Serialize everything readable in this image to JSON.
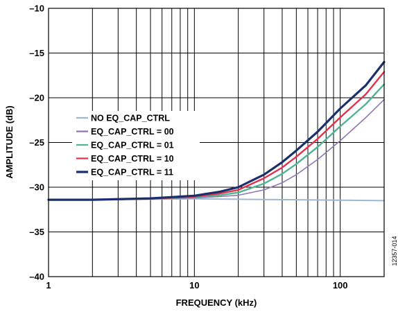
{
  "chart_data": {
    "type": "line",
    "title": "",
    "xlabel": "FREQUENCY (kHz)",
    "ylabel": "AMPLITUDE (dB)",
    "x_scale": "log",
    "xlim": [
      1,
      200
    ],
    "ylim": [
      -40,
      -10
    ],
    "x_tick_labels": [
      {
        "value": 1,
        "label": "1"
      },
      {
        "value": 10,
        "label": "10"
      },
      {
        "value": 100,
        "label": "100"
      }
    ],
    "y_tick_labels": [
      {
        "value": -10,
        "label": "–10"
      },
      {
        "value": -15,
        "label": "–15"
      },
      {
        "value": -20,
        "label": "–20"
      },
      {
        "value": -25,
        "label": "–25"
      },
      {
        "value": -30,
        "label": "–30"
      },
      {
        "value": -35,
        "label": "–35"
      },
      {
        "value": -40,
        "label": "–40"
      }
    ],
    "grid": true,
    "legend_position": "center-left",
    "figure_id": "12357-014",
    "series": [
      {
        "name": "NO EQ_CAP_CTRL",
        "color": "#9fb6cf",
        "x": [
          1,
          2,
          5,
          10,
          20,
          50,
          100,
          200
        ],
        "y": [
          -31.4,
          -31.4,
          -31.35,
          -31.3,
          -31.35,
          -31.4,
          -31.45,
          -31.5
        ]
      },
      {
        "name": "EQ_CAP_CTRL = 00",
        "color": "#8e76b6",
        "x": [
          1,
          2,
          5,
          10,
          15,
          20,
          30,
          40,
          50,
          70,
          100,
          150,
          200
        ],
        "y": [
          -31.4,
          -31.4,
          -31.3,
          -31.2,
          -31.05,
          -30.9,
          -30.3,
          -29.5,
          -28.6,
          -26.9,
          -24.8,
          -22.2,
          -20.2
        ]
      },
      {
        "name": "EQ_CAP_CTRL = 01",
        "color": "#4fb48f",
        "x": [
          1,
          2,
          5,
          10,
          15,
          20,
          30,
          40,
          50,
          70,
          100,
          150,
          200
        ],
        "y": [
          -31.4,
          -31.4,
          -31.3,
          -31.1,
          -30.9,
          -30.6,
          -29.6,
          -28.5,
          -27.4,
          -25.5,
          -23.2,
          -20.7,
          -18.5
        ]
      },
      {
        "name": "EQ_CAP_CTRL = 10",
        "color": "#e0314e",
        "x": [
          1,
          2,
          5,
          10,
          15,
          20,
          30,
          40,
          50,
          70,
          100,
          150,
          200
        ],
        "y": [
          -31.4,
          -31.4,
          -31.3,
          -31.05,
          -30.7,
          -30.3,
          -29.0,
          -27.8,
          -26.6,
          -24.6,
          -22.2,
          -19.6,
          -17.1
        ]
      },
      {
        "name": "EQ_CAP_CTRL = 11",
        "color": "#1a2f6b",
        "x": [
          1,
          2,
          5,
          10,
          15,
          20,
          30,
          40,
          50,
          70,
          100,
          150,
          200
        ],
        "y": [
          -31.4,
          -31.4,
          -31.25,
          -30.95,
          -30.5,
          -30.0,
          -28.6,
          -27.2,
          -25.9,
          -23.8,
          -21.2,
          -18.6,
          -16.0
        ]
      }
    ]
  }
}
